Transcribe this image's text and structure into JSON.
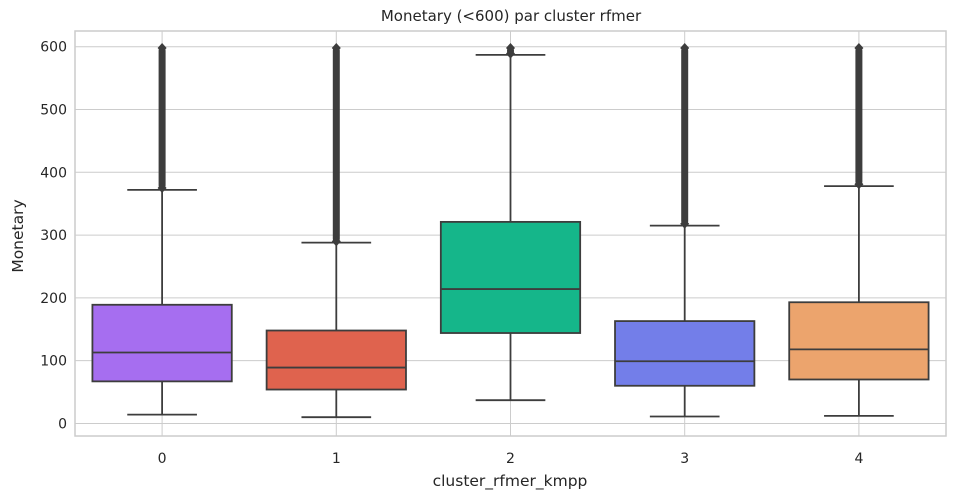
{
  "chart_data": {
    "type": "boxplot",
    "title": "Monetary (<600) par cluster rfmer",
    "xlabel": "cluster_rfmer_kmpp",
    "ylabel": "Monetary",
    "ylim": [
      -20,
      625
    ],
    "yticks": [
      0,
      100,
      200,
      300,
      400,
      500,
      600
    ],
    "grid": true,
    "categories": [
      "0",
      "1",
      "2",
      "3",
      "4"
    ],
    "colors": [
      "#a66ef0",
      "#df634e",
      "#15b68a",
      "#737ee9",
      "#eca46d"
    ],
    "boxes": [
      {
        "category": "0",
        "whisker_low": 14,
        "q1": 67,
        "median": 113,
        "q3": 189,
        "whisker_high": 372,
        "outliers_from": 375,
        "outliers_to": 598
      },
      {
        "category": "1",
        "whisker_low": 10,
        "q1": 54,
        "median": 89,
        "q3": 148,
        "whisker_high": 288,
        "outliers_from": 290,
        "outliers_to": 598
      },
      {
        "category": "2",
        "whisker_low": 37,
        "q1": 144,
        "median": 214,
        "q3": 321,
        "whisker_high": 587,
        "outliers_from": 589,
        "outliers_to": 598
      },
      {
        "category": "3",
        "whisker_low": 11,
        "q1": 60,
        "median": 99,
        "q3": 163,
        "whisker_high": 315,
        "outliers_from": 318,
        "outliers_to": 598
      },
      {
        "category": "4",
        "whisker_low": 12,
        "q1": 70,
        "median": 118,
        "q3": 193,
        "whisker_high": 378,
        "outliers_from": 381,
        "outliers_to": 598
      }
    ]
  }
}
